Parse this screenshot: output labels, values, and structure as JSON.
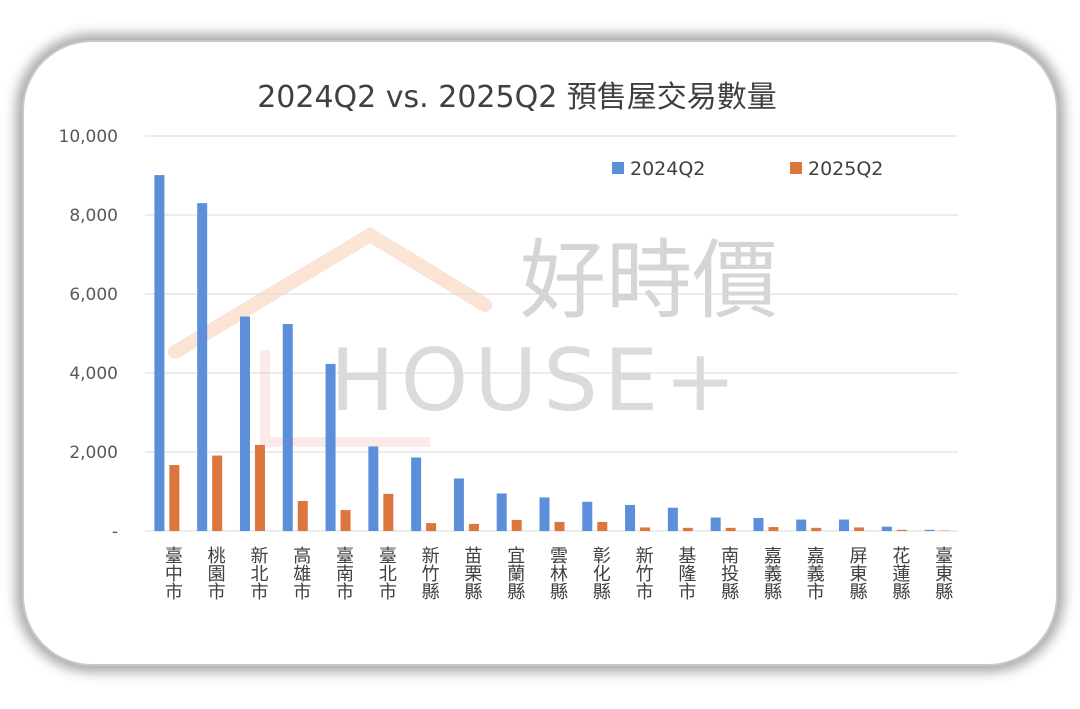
{
  "chart_data": {
    "type": "bar",
    "title": "2024Q2 vs. 2025Q2 預售屋交易數量",
    "xlabel": "",
    "ylabel": "",
    "ylim": [
      0,
      10000
    ],
    "yticks": [
      "-",
      "2,000",
      "4,000",
      "6,000",
      "8,000",
      "10,000"
    ],
    "ytick_values": [
      0,
      2000,
      4000,
      6000,
      8000,
      10000
    ],
    "grid": true,
    "legend_position": "top-right",
    "categories": [
      "臺中市",
      "桃園市",
      "新北市",
      "高雄市",
      "臺南市",
      "臺北市",
      "新竹縣",
      "苗栗縣",
      "宜蘭縣",
      "雲林縣",
      "彰化縣",
      "新竹市",
      "基隆市",
      "南投縣",
      "嘉義縣",
      "嘉義市",
      "屏東縣",
      "花蓮縣",
      "臺東縣"
    ],
    "series": [
      {
        "name": "2024Q2",
        "color": "#5b8fd9",
        "values": [
          9010,
          8300,
          5430,
          5240,
          4230,
          2140,
          1860,
          1330,
          950,
          850,
          740,
          660,
          590,
          340,
          330,
          290,
          290,
          110,
          30
        ]
      },
      {
        "name": "2025Q2",
        "color": "#dc763f",
        "values": [
          1670,
          1910,
          2180,
          760,
          530,
          940,
          200,
          180,
          280,
          230,
          230,
          90,
          80,
          80,
          100,
          80,
          90,
          30,
          10
        ]
      }
    ]
  },
  "watermark": {
    "brand_cn": "好時價",
    "brand_en": "HOUSE+"
  }
}
